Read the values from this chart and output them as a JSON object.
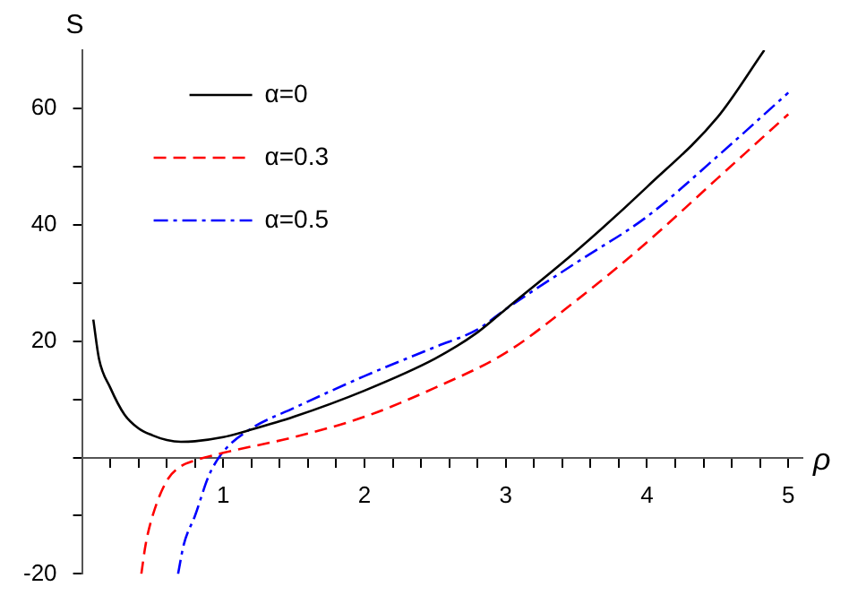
{
  "chart_data": {
    "type": "line",
    "xlabel": "ρ",
    "ylabel": "S",
    "xlim": [
      0,
      5.1
    ],
    "ylim": [
      -20,
      70
    ],
    "xticks": [
      {
        "value": 0.2,
        "label": null
      },
      {
        "value": 0.4,
        "label": null
      },
      {
        "value": 0.6,
        "label": null
      },
      {
        "value": 0.8,
        "label": null
      },
      1,
      {
        "value": 1.2,
        "label": null
      },
      {
        "value": 1.4,
        "label": null
      },
      {
        "value": 1.6,
        "label": null
      },
      {
        "value": 1.8,
        "label": null
      },
      2,
      {
        "value": 2.2,
        "label": null
      },
      {
        "value": 2.4,
        "label": null
      },
      {
        "value": 2.6,
        "label": null
      },
      {
        "value": 2.8,
        "label": null
      },
      3,
      {
        "value": 3.2,
        "label": null
      },
      {
        "value": 3.4,
        "label": null
      },
      {
        "value": 3.6,
        "label": null
      },
      {
        "value": 3.8,
        "label": null
      },
      4,
      {
        "value": 4.2,
        "label": null
      },
      {
        "value": 4.4,
        "label": null
      },
      {
        "value": 4.6,
        "label": null
      },
      {
        "value": 4.8,
        "label": null
      },
      5
    ],
    "yticks": [
      -20,
      {
        "value": -10,
        "label": null
      },
      {
        "value": 0,
        "label": null
      },
      {
        "value": 10,
        "label": null
      },
      20,
      {
        "value": 30,
        "label": null
      },
      40,
      {
        "value": 50,
        "label": null
      },
      60
    ],
    "grid": false,
    "legend": "top left",
    "marker": "none",
    "series": [
      {
        "name": "α=0",
        "color": "#000000",
        "line_style": "solid",
        "x": [
          0.08,
          0.12,
          0.2,
          0.3,
          0.4,
          0.5,
          0.6,
          0.7,
          0.8,
          1,
          1.2,
          1.5,
          2,
          2.5,
          2.8,
          3,
          3.5,
          4,
          4.5,
          4.83
        ],
        "values": [
          23.7,
          17,
          12,
          7.4,
          5,
          3.8,
          3,
          2.7,
          2.8,
          3.5,
          4.8,
          7,
          11.5,
          17,
          21.5,
          25.5,
          35.5,
          46.5,
          58.5,
          70
        ]
      },
      {
        "name": "α=0.3",
        "color": "#ff0000",
        "line_style": "dashed",
        "x": [
          0.42,
          0.45,
          0.5,
          0.6,
          0.7,
          0.8,
          1,
          1.5,
          2,
          2.5,
          3,
          3.5,
          4,
          4.5,
          5
        ],
        "values": [
          -20,
          -15,
          -10,
          -4,
          -1.5,
          -0.5,
          0.8,
          3.5,
          7,
          12,
          18,
          27,
          37,
          48,
          59
        ]
      },
      {
        "name": "α=0.5",
        "color": "#0000ff",
        "line_style": "dashdot",
        "x": [
          0.68,
          0.72,
          0.8,
          0.9,
          1,
          1.2,
          1.5,
          2,
          2.5,
          2.8,
          3,
          3.5,
          4,
          4.5,
          5
        ],
        "values": [
          -20,
          -15,
          -10,
          -3,
          1,
          5,
          8.5,
          14,
          19,
          22,
          25.5,
          33.5,
          41.4,
          51.8,
          62.7
        ]
      }
    ]
  }
}
